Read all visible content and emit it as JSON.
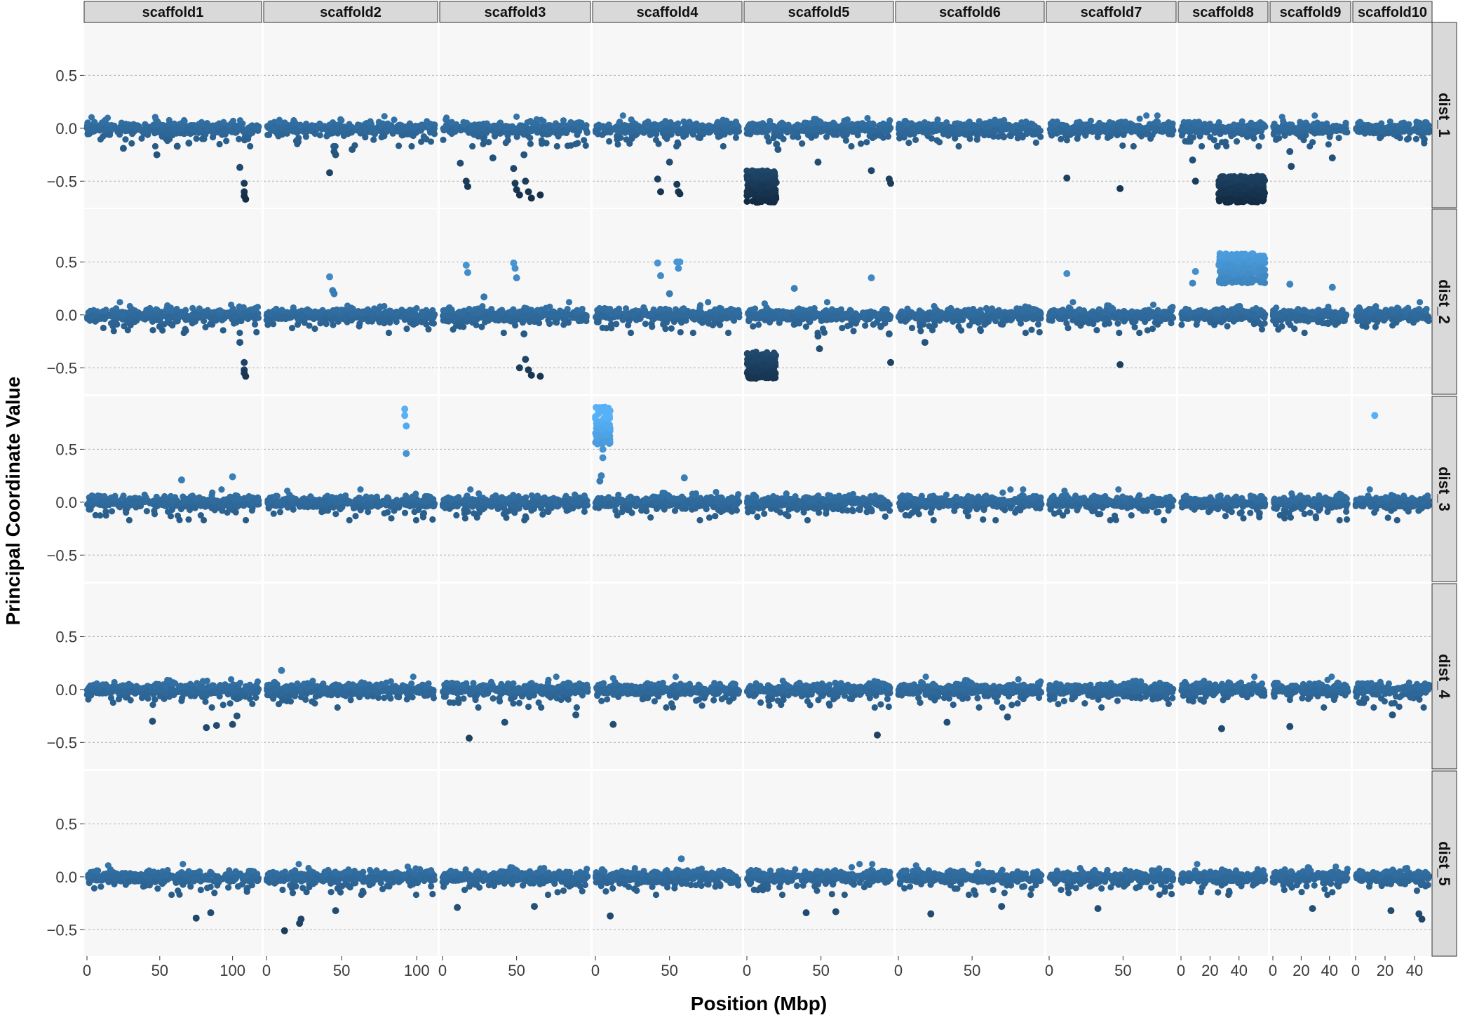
{
  "chart_data": {
    "type": "scatter",
    "title": "",
    "xlabel": "Position (Mbp)",
    "ylabel": "Principal Coordinate Value",
    "ylim": [
      -0.75,
      1.0
    ],
    "y_ticks": [
      -0.5,
      0.0,
      0.5
    ],
    "y_tick_labels": [
      "−0.5",
      "0.0",
      "0.5"
    ],
    "grid": true,
    "color_scale": {
      "low": "#132B43",
      "mid": "#2f6a9c",
      "high": "#56B1F7"
    },
    "columns": [
      {
        "name": "scaffold1",
        "xlim": [
          0,
          118
        ],
        "x_ticks": [
          0,
          50,
          100
        ]
      },
      {
        "name": "scaffold2",
        "xlim": [
          0,
          112
        ],
        "x_ticks": [
          0,
          50,
          100
        ]
      },
      {
        "name": "scaffold3",
        "xlim": [
          0,
          98
        ],
        "x_ticks": [
          0,
          50
        ]
      },
      {
        "name": "scaffold4",
        "xlim": [
          0,
          97
        ],
        "x_ticks": [
          0,
          50
        ]
      },
      {
        "name": "scaffold5",
        "xlim": [
          0,
          97
        ],
        "x_ticks": [
          0,
          50
        ]
      },
      {
        "name": "scaffold6",
        "xlim": [
          0,
          97
        ],
        "x_ticks": [
          0,
          50
        ]
      },
      {
        "name": "scaffold7",
        "xlim": [
          0,
          84
        ],
        "x_ticks": [
          0,
          50
        ]
      },
      {
        "name": "scaffold8",
        "xlim": [
          0,
          58
        ],
        "x_ticks": [
          0,
          20,
          40
        ]
      },
      {
        "name": "scaffold9",
        "xlim": [
          0,
          53
        ],
        "x_ticks": [
          0,
          20,
          40
        ]
      },
      {
        "name": "scaffold10",
        "xlim": [
          0,
          50
        ],
        "x_ticks": [
          0,
          20,
          40
        ]
      }
    ],
    "rows": [
      "dist_1",
      "dist_2",
      "dist_3",
      "dist_4",
      "dist_5"
    ],
    "series": [
      {
        "row": "dist_1",
        "points": [
          {
            "col": "scaffold1",
            "x": [
              105,
              108,
              108,
              108,
              109
            ],
            "y": [
              -0.37,
              -0.52,
              -0.6,
              -0.64,
              -0.67
            ]
          },
          {
            "col": "scaffold1",
            "x": [
              25,
              48,
              62,
              70
            ],
            "y": [
              -0.19,
              -0.25,
              -0.17,
              -0.14
            ]
          },
          {
            "col": "scaffold2",
            "x": [
              20,
              42,
              45,
              46,
              57
            ],
            "y": [
              -0.12,
              -0.42,
              -0.22,
              -0.25,
              -0.2
            ]
          },
          {
            "col": "scaffold3",
            "x": [
              12,
              16,
              17,
              34,
              48,
              49,
              50,
              52,
              55,
              56,
              58,
              60,
              66
            ],
            "y": [
              -0.33,
              -0.5,
              -0.55,
              -0.28,
              -0.38,
              -0.52,
              -0.58,
              -0.63,
              -0.25,
              -0.5,
              -0.6,
              -0.66,
              -0.63
            ]
          },
          {
            "col": "scaffold4",
            "x": [
              42,
              44,
              50,
              55,
              56,
              57
            ],
            "y": [
              -0.48,
              -0.6,
              -0.32,
              -0.53,
              -0.6,
              -0.62
            ]
          },
          {
            "col": "scaffold5",
            "x": [
              20,
              21,
              48,
              84,
              96,
              97
            ],
            "y": [
              -0.15,
              -0.2,
              -0.32,
              -0.4,
              -0.48,
              -0.52
            ]
          },
          {
            "col": "scaffold7",
            "x": [
              12,
              48
            ],
            "y": [
              -0.47,
              -0.57
            ]
          },
          {
            "col": "scaffold8",
            "x": [
              8,
              10,
              25,
              27
            ],
            "y": [
              -0.3,
              -0.5,
              -0.17,
              -0.05
            ]
          },
          {
            "col": "scaffold9",
            "x": [
              12,
              13,
              42
            ],
            "y": [
              -0.22,
              -0.36,
              -0.28
            ]
          }
        ]
      },
      {
        "row": "dist_2",
        "points": [
          {
            "col": "scaffold1",
            "x": [
              105,
              108,
              108,
              108,
              109
            ],
            "y": [
              -0.26,
              -0.45,
              -0.52,
              -0.55,
              -0.58
            ]
          },
          {
            "col": "scaffold2",
            "x": [
              42,
              44,
              45
            ],
            "y": [
              0.36,
              0.23,
              0.2
            ]
          },
          {
            "col": "scaffold3",
            "x": [
              16,
              17,
              28,
              48,
              49,
              50,
              52,
              55,
              56,
              58,
              60,
              66
            ],
            "y": [
              0.47,
              0.4,
              0.17,
              0.49,
              0.44,
              0.35,
              -0.5,
              -0.18,
              -0.42,
              -0.52,
              -0.57,
              -0.58
            ]
          },
          {
            "col": "scaffold4",
            "x": [
              42,
              44,
              50,
              55,
              56,
              57
            ],
            "y": [
              0.49,
              0.37,
              0.2,
              0.5,
              0.44,
              0.5
            ]
          },
          {
            "col": "scaffold5",
            "x": [
              32,
              48,
              49,
              84,
              96,
              97
            ],
            "y": [
              0.25,
              -0.2,
              -0.32,
              0.35,
              -0.18,
              -0.45
            ]
          },
          {
            "col": "scaffold6",
            "x": [
              18
            ],
            "y": [
              -0.26
            ]
          },
          {
            "col": "scaffold7",
            "x": [
              12,
              48
            ],
            "y": [
              0.39,
              -0.47
            ]
          },
          {
            "col": "scaffold8",
            "x": [
              8,
              10
            ],
            "y": [
              0.3,
              0.41
            ]
          },
          {
            "col": "scaffold9",
            "x": [
              12,
              42
            ],
            "y": [
              0.29,
              0.26
            ]
          }
        ]
      },
      {
        "row": "dist_3",
        "points": [
          {
            "col": "scaffold1",
            "x": [
              65,
              100
            ],
            "y": [
              0.21,
              0.24
            ]
          },
          {
            "col": "scaffold2",
            "x": [
              92,
              92,
              93,
              93
            ],
            "y": [
              0.88,
              0.82,
              0.72,
              0.46
            ]
          },
          {
            "col": "scaffold4",
            "x": [
              3,
              4,
              5,
              5,
              6,
              7,
              60
            ],
            "y": [
              0.2,
              0.25,
              0.42,
              0.5,
              0.58,
              0.64,
              0.23
            ]
          },
          {
            "col": "scaffold10",
            "x": [
              13
            ],
            "y": [
              0.82
            ]
          }
        ]
      },
      {
        "row": "dist_4",
        "points": [
          {
            "col": "scaffold1",
            "x": [
              45,
              82,
              89,
              100,
              103
            ],
            "y": [
              -0.3,
              -0.36,
              -0.34,
              -0.33,
              -0.25
            ]
          },
          {
            "col": "scaffold2",
            "x": [
              10
            ],
            "y": [
              0.18
            ]
          },
          {
            "col": "scaffold3",
            "x": [
              18,
              42,
              90
            ],
            "y": [
              -0.46,
              -0.31,
              -0.24
            ]
          },
          {
            "col": "scaffold4",
            "x": [
              12
            ],
            "y": [
              -0.33
            ]
          },
          {
            "col": "scaffold5",
            "x": [
              88
            ],
            "y": [
              -0.43
            ]
          },
          {
            "col": "scaffold6",
            "x": [
              33,
              74
            ],
            "y": [
              -0.31,
              -0.26
            ]
          },
          {
            "col": "scaffold8",
            "x": [
              28
            ],
            "y": [
              -0.37
            ]
          },
          {
            "col": "scaffold9",
            "x": [
              12
            ],
            "y": [
              -0.35
            ]
          },
          {
            "col": "scaffold10",
            "x": [
              25
            ],
            "y": [
              -0.24
            ]
          }
        ]
      },
      {
        "row": "dist_5",
        "points": [
          {
            "col": "scaffold1",
            "x": [
              75,
              85
            ],
            "y": [
              -0.39,
              -0.34
            ]
          },
          {
            "col": "scaffold2",
            "x": [
              12,
              22,
              23,
              46
            ],
            "y": [
              -0.51,
              -0.44,
              -0.4,
              -0.32
            ]
          },
          {
            "col": "scaffold3",
            "x": [
              10,
              62
            ],
            "y": [
              -0.29,
              -0.28
            ]
          },
          {
            "col": "scaffold4",
            "x": [
              10,
              58
            ],
            "y": [
              -0.37,
              0.17
            ]
          },
          {
            "col": "scaffold5",
            "x": [
              40,
              60
            ],
            "y": [
              -0.34,
              -0.33
            ]
          },
          {
            "col": "scaffold6",
            "x": [
              22,
              70
            ],
            "y": [
              -0.35,
              -0.28
            ]
          },
          {
            "col": "scaffold7",
            "x": [
              33
            ],
            "y": [
              -0.3
            ]
          },
          {
            "col": "scaffold9",
            "x": [
              28
            ],
            "y": [
              -0.3
            ]
          },
          {
            "col": "scaffold10",
            "x": [
              24,
              43,
              45
            ],
            "y": [
              -0.32,
              -0.35,
              -0.4
            ]
          }
        ]
      }
    ],
    "bands": [
      {
        "row": "dist_1",
        "col": "scaffold5",
        "x": [
          0,
          20
        ],
        "y": [
          -0.7,
          -0.4
        ],
        "n": 180
      },
      {
        "row": "dist_1",
        "col": "scaffold8",
        "x": [
          26,
          58
        ],
        "y": [
          -0.7,
          -0.45
        ],
        "n": 320
      },
      {
        "row": "dist_2",
        "col": "scaffold5",
        "x": [
          0,
          20
        ],
        "y": [
          -0.6,
          -0.35
        ],
        "n": 180
      },
      {
        "row": "dist_2",
        "col": "scaffold8",
        "x": [
          26,
          58
        ],
        "y": [
          0.3,
          0.58
        ],
        "n": 320
      },
      {
        "row": "dist_3",
        "col": "scaffold4",
        "x": [
          0,
          10
        ],
        "y": [
          0.55,
          0.9
        ],
        "n": 90
      }
    ],
    "baseline": {
      "note": "dense background of per-window points around 0.0 in every panel",
      "y_center": 0.0,
      "y_spread": [
        -0.12,
        0.12
      ]
    }
  }
}
